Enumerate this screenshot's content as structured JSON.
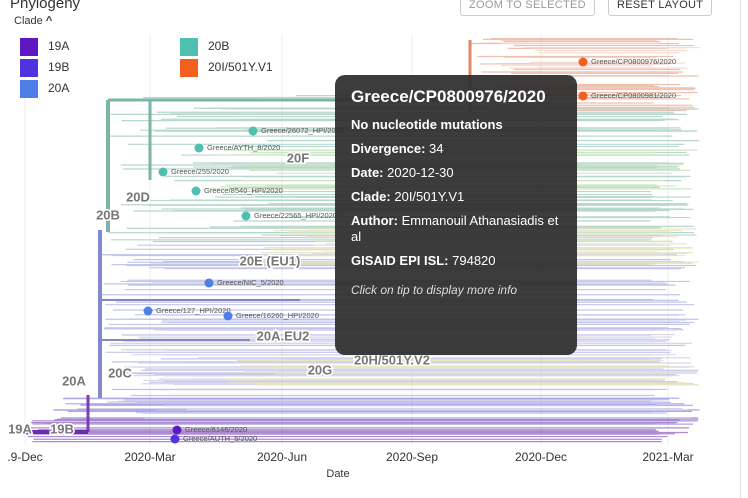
{
  "header": {
    "title": "Phylogeny",
    "buttons": [
      "ZOOM TO SELECTED",
      "RESET LAYOUT"
    ]
  },
  "legend": {
    "title": "Clade",
    "items": [
      {
        "label": "19A",
        "color": "#5f17c4"
      },
      {
        "label": "19B",
        "color": "#4d34e0"
      },
      {
        "label": "20A",
        "color": "#4f7ee8"
      },
      {
        "label": "20B",
        "color": "#4fbfb2"
      },
      {
        "label": "20I/501Y.V1",
        "color": "#f2601f"
      }
    ]
  },
  "clade_labels": [
    "19A",
    "19B",
    "20A",
    "20B",
    "20C",
    "20D",
    "20E (EU1)",
    "20F",
    "20A.EU2",
    "20G",
    "20H/501Y.V2"
  ],
  "tips": [
    "Greece/CP0800976/2020",
    "Greece/CP0800981/2020",
    "Greece/26072_HPI/2020",
    "Greece/AYTH_8/2020",
    "Greece/255/2020",
    "Greece/8540_HPI/2020",
    "Greece/22565_HPI/2020",
    "Greece/NIC_5/2020",
    "Greece/127_HPI/2020",
    "Greece/16260_HPI/2020",
    "Greece/6146/2020",
    "Greece/AUTH_5/2020"
  ],
  "axis": {
    "ticks": [
      ".9-Dec",
      "2020-Mar",
      "2020-Jun",
      "2020-Sep",
      "2020-Dec",
      "2021-Mar"
    ],
    "label": "Date"
  },
  "tooltip": {
    "title": "Greece/CP0800976/2020",
    "mutations": "No nucleotide mutations",
    "fields": [
      {
        "label": "Divergence:",
        "value": 34
      },
      {
        "label": "Date:",
        "value": "2020-12-30"
      },
      {
        "label": "Clade:",
        "value": "20I/501Y.V1"
      },
      {
        "label": "Author:",
        "value": "Emmanouil Athanasiadis et al"
      },
      {
        "label": "GISAID EPI ISL:",
        "value": 794820
      }
    ],
    "hint": "Click on tip to display more info"
  }
}
